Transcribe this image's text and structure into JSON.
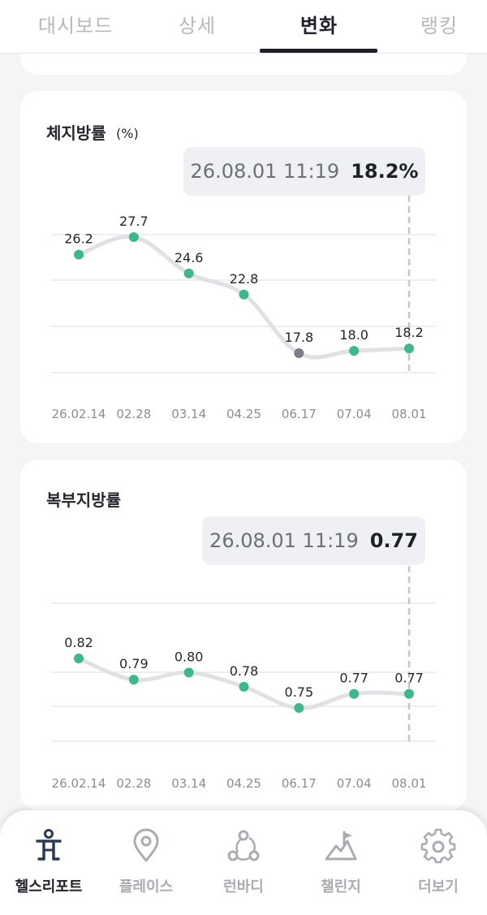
{
  "tabs": [
    {
      "label": "대시보드",
      "active": false
    },
    {
      "label": "상세",
      "active": false
    },
    {
      "label": "변화",
      "active": true
    },
    {
      "label": "랭킹",
      "active": false
    }
  ],
  "colors": {
    "point": "#3db88c",
    "point_selected": "#7a7d87",
    "line": "#dfe1e5",
    "grid": "#e8e9ec",
    "label": "#24262b",
    "tick": "#8a8d93",
    "dashed_marker": "#c4c6ca"
  },
  "body_fat": {
    "title": "체지방률",
    "unit": "(%)",
    "tooltip": {
      "date": "26.08.01 11:19",
      "value": "18.2%"
    },
    "chart_data": {
      "type": "line",
      "categories": [
        "26.02.14",
        "02.28",
        "03.14",
        "04.25",
        "06.17",
        "07.04",
        "08.01"
      ],
      "values": [
        26.2,
        27.7,
        24.6,
        22.8,
        17.8,
        18.0,
        18.2
      ],
      "value_labels": [
        "26.2",
        "27.7",
        "24.6",
        "22.8",
        "17.8",
        "18.0",
        "18.2"
      ],
      "selected_index": 6,
      "grid": true
    }
  },
  "abdominal_fat": {
    "title": "복부지방률",
    "tooltip": {
      "date": "26.08.01 11:19",
      "value": "0.77"
    },
    "chart_data": {
      "type": "line",
      "categories": [
        "26.02.14",
        "02.28",
        "03.14",
        "04.25",
        "06.17",
        "07.04",
        "08.01"
      ],
      "values": [
        0.82,
        0.79,
        0.8,
        0.78,
        0.75,
        0.77,
        0.77
      ],
      "value_labels": [
        "0.82",
        "0.79",
        "0.80",
        "0.78",
        "0.75",
        "0.77",
        "0.77"
      ],
      "selected_index": 6,
      "grid": true
    }
  },
  "bottom_nav": [
    {
      "label": "헬스리포트",
      "icon": "health-report-icon",
      "active": true
    },
    {
      "label": "플레이스",
      "icon": "place-pin-icon",
      "active": false
    },
    {
      "label": "런바디",
      "icon": "runbody-icon",
      "active": false
    },
    {
      "label": "챌린지",
      "icon": "challenge-flag-icon",
      "active": false
    },
    {
      "label": "더보기",
      "icon": "settings-gear-icon",
      "active": false
    }
  ]
}
